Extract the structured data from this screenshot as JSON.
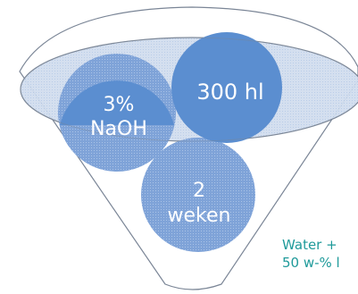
{
  "bubbles": {
    "naoh": {
      "line1": "3%",
      "line2": "NaOH"
    },
    "volume": {
      "label": "300 hl"
    },
    "time": {
      "line1": "2",
      "line2": "weken"
    }
  },
  "side_note": {
    "line1": "Water +",
    "line2": "50 w-% l"
  },
  "colors": {
    "bubble_fill": "#5b8ed0",
    "bubble_fill_light": "#88abdc",
    "ellipse_fill": "#c9d8ec",
    "outline": "#7a8596",
    "label_color": "#1f9a9a"
  }
}
